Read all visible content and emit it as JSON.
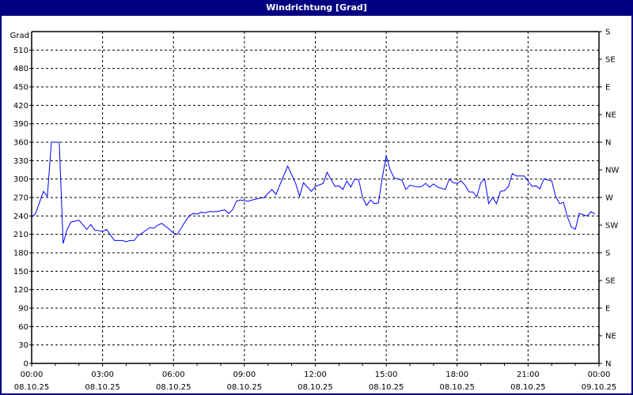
{
  "window": {
    "title": "Windrichtung [Grad]",
    "title_bg": "#000080"
  },
  "chart_data": {
    "type": "line",
    "title": "Windrichtung [Grad]",
    "ylabel": "Grad",
    "ylim": [
      0,
      540
    ],
    "yticks": [
      0,
      30,
      60,
      90,
      120,
      150,
      180,
      210,
      240,
      270,
      300,
      330,
      360,
      390,
      420,
      450,
      480,
      510
    ],
    "right_axis_labels": [
      {
        "value": 0,
        "label": "N"
      },
      {
        "value": 45,
        "label": "NE"
      },
      {
        "value": 90,
        "label": "E"
      },
      {
        "value": 135,
        "label": "SE"
      },
      {
        "value": 180,
        "label": "S"
      },
      {
        "value": 225,
        "label": "SW"
      },
      {
        "value": 270,
        "label": "W"
      },
      {
        "value": 315,
        "label": "NW"
      },
      {
        "value": 360,
        "label": "N"
      },
      {
        "value": 405,
        "label": "NE"
      },
      {
        "value": 450,
        "label": "E"
      },
      {
        "value": 495,
        "label": "SE"
      },
      {
        "value": 540,
        "label": "S"
      }
    ],
    "xlim": [
      "08.10.25 00:00",
      "09.10.25 00:00"
    ],
    "xticks": [
      {
        "time": "00:00",
        "date": "08.10.25"
      },
      {
        "time": "03:00",
        "date": "08.10.25"
      },
      {
        "time": "06:00",
        "date": "08.10.25"
      },
      {
        "time": "09:00",
        "date": "08.10.25"
      },
      {
        "time": "12:00",
        "date": "08.10.25"
      },
      {
        "time": "15:00",
        "date": "08.10.25"
      },
      {
        "time": "18:00",
        "date": "08.10.25"
      },
      {
        "time": "21:00",
        "date": "08.10.25"
      },
      {
        "time": "00:00",
        "date": "09.10.25"
      }
    ],
    "grid": true,
    "line_color": "#0000ff",
    "series": [
      {
        "x": [
          "00:00",
          "00:10",
          "00:30",
          "00:40",
          "00:50",
          "01:10",
          "01:20",
          "01:30",
          "01:40",
          "02:00",
          "02:20",
          "02:30",
          "02:40",
          "03:00",
          "03:10",
          "03:30",
          "03:50",
          "04:00",
          "04:10",
          "04:20",
          "04:30",
          "04:40",
          "05:00",
          "05:10",
          "05:20",
          "05:30",
          "05:50",
          "06:00",
          "06:10",
          "06:30",
          "06:40",
          "06:50",
          "07:00",
          "07:10",
          "07:20",
          "07:30",
          "07:50",
          "08:10",
          "08:20",
          "08:30",
          "08:40",
          "08:50",
          "09:10",
          "09:20",
          "09:40",
          "09:50",
          "10:10",
          "10:20",
          "10:50",
          "11:10",
          "11:20",
          "11:30",
          "11:50",
          "12:00",
          "12:20",
          "12:30",
          "12:50",
          "13:00",
          "13:10",
          "13:20",
          "13:30",
          "13:40",
          "13:50",
          "14:00",
          "14:10",
          "14:20",
          "14:30",
          "14:40",
          "14:50",
          "15:00",
          "15:10",
          "15:20",
          "15:40",
          "15:50",
          "16:00",
          "16:20",
          "16:30",
          "16:40",
          "16:50",
          "17:00",
          "17:10",
          "17:30",
          "17:40",
          "17:50",
          "18:00",
          "18:10",
          "18:20",
          "18:30",
          "18:40",
          "18:50",
          "19:00",
          "19:10",
          "19:20",
          "19:30",
          "19:40",
          "19:50",
          "20:00",
          "20:10",
          "20:20",
          "20:30",
          "20:50",
          "21:00",
          "21:10",
          "21:20",
          "21:30",
          "21:40",
          "22:00",
          "22:10",
          "22:20",
          "22:30",
          "22:40",
          "22:50",
          "23:00",
          "23:10",
          "23:20",
          "23:30",
          "23:40",
          "23:50"
        ],
        "y": [
          238,
          244,
          280,
          272,
          360,
          360,
          195,
          218,
          230,
          233,
          218,
          226,
          217,
          215,
          218,
          200,
          200,
          198,
          200,
          200,
          208,
          212,
          221,
          220,
          225,
          228,
          218,
          212,
          210,
          231,
          240,
          244,
          243,
          246,
          245,
          247,
          247,
          250,
          244,
          250,
          264,
          266,
          264,
          266,
          269,
          270,
          283,
          275,
          321,
          293,
          272,
          294,
          280,
          288,
          293,
          311,
          288,
          289,
          283,
          297,
          287,
          300,
          299,
          270,
          257,
          266,
          260,
          261,
          302,
          338,
          315,
          302,
          298,
          283,
          290,
          287,
          288,
          293,
          287,
          292,
          287,
          283,
          300,
          294,
          293,
          297,
          290,
          279,
          279,
          271,
          294,
          300,
          260,
          270,
          260,
          280,
          281,
          288,
          309,
          305,
          305,
          297,
          288,
          289,
          284,
          300,
          297,
          272,
          260,
          262,
          238,
          222,
          218,
          244,
          242,
          240,
          247,
          243
        ]
      }
    ]
  }
}
